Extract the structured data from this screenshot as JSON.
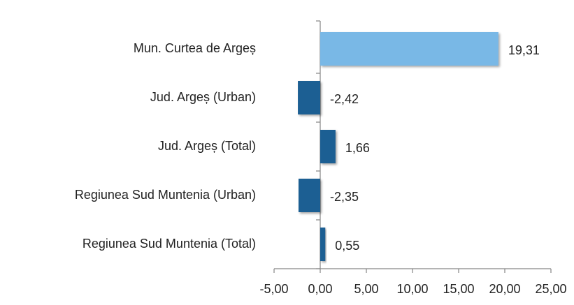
{
  "chart_data": {
    "type": "hbar",
    "categories": [
      "Mun. Curtea de Argeș",
      "Jud. Argeș (Urban)",
      "Jud. Argeș (Total)",
      "Regiunea Sud Muntenia (Urban)",
      "Regiunea Sud Muntenia (Total)"
    ],
    "values": [
      19.31,
      -2.42,
      1.66,
      -2.35,
      0.55
    ],
    "value_labels": [
      "19,31",
      "-2,42",
      "1,66",
      "-2,35",
      "0,55"
    ],
    "colors": [
      "#79b8e6",
      "#1f5f93",
      "#1f5f93",
      "#1f5f93",
      "#1f5f93"
    ],
    "xlim": [
      -5,
      25
    ],
    "xticks": [
      {
        "value": -5,
        "label": "-5,00"
      },
      {
        "value": 0,
        "label": "0,00"
      },
      {
        "value": 5,
        "label": "5,00"
      },
      {
        "value": 10,
        "label": "10,00"
      },
      {
        "value": 15,
        "label": "15,00"
      },
      {
        "value": 20,
        "label": "20,00"
      },
      {
        "value": 25,
        "label": "25,00"
      }
    ]
  }
}
